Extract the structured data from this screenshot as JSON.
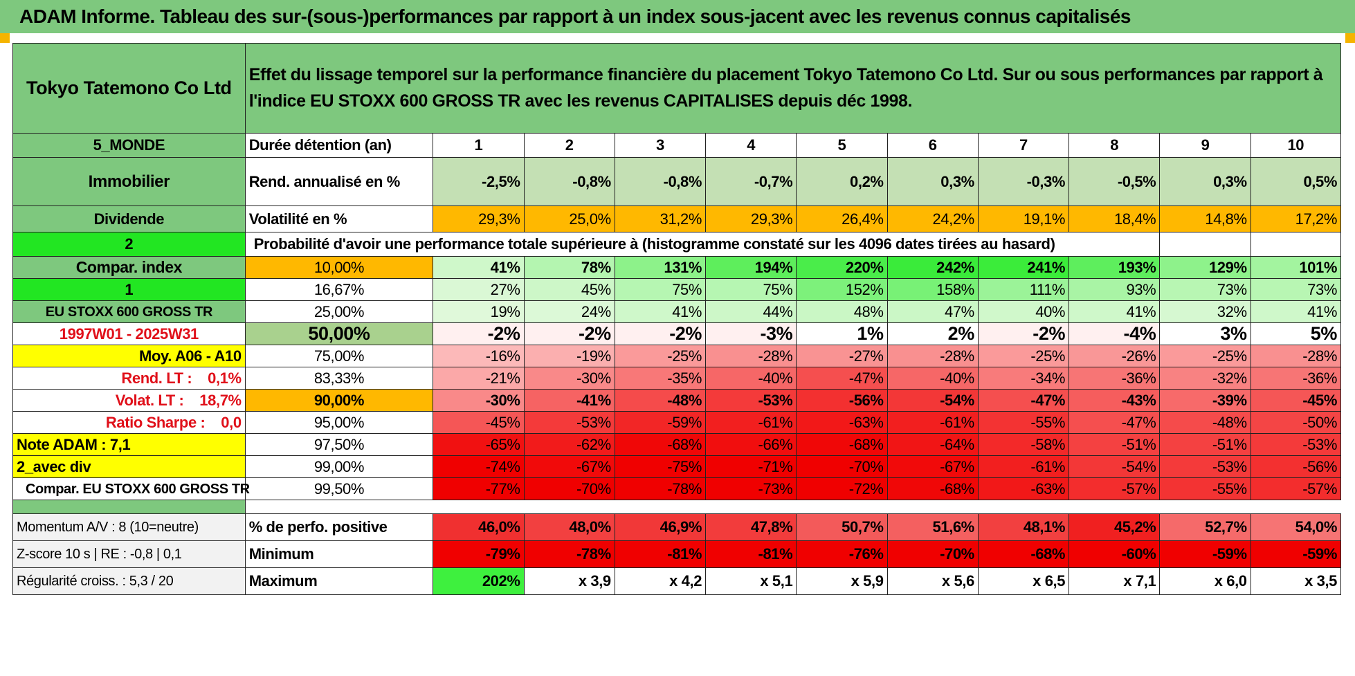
{
  "title": "ADAM Informe. Tableau des sur-(sous-)performances par rapport à un index sous-jacent avec les revenus connus capitalisés",
  "colors": {
    "header_green": "#7ec87e",
    "bright_green": "#22e622",
    "orange": "#ffb800",
    "yellow": "#ffff00",
    "red_text": "#e0101a"
  },
  "left": {
    "name": "Tokyo Tatemono Co Ltd",
    "region": "5_MONDE",
    "sector": "Immobilier",
    "type": "Dividende",
    "n1": "2",
    "compar_label": "Compar. index",
    "n2": "1",
    "index": "EU STOXX 600 GROSS TR",
    "period": "1997W01 - 2025W31",
    "moy": "Moy. A06 - A10",
    "rend_lt": "Rend. LT :    0,1%",
    "volat_lt": "Volat. LT :    18,7%",
    "sharpe": "Ratio Sharpe :    0,0",
    "note": "Note ADAM : 7,1",
    "avec_div": "2_avec div",
    "compar_full": "Compar. EU STOXX 600 GROSS TR",
    "momentum": "Momentum A/V : 8 (10=neutre)",
    "zscore": "Z-score 10 s | RE : -0,8 | 0,1",
    "regularite": "Régularité croiss. : 5,3 / 20"
  },
  "description": "Effet du lissage temporel sur la performance financière du placement Tokyo Tatemono Co Ltd. Sur ou sous performances par rapport à l'indice EU STOXX 600 GROSS TR avec les revenus CAPITALISES depuis déc 1998.",
  "row_labels": {
    "duree": "Durée détention (an)",
    "rend": "Rend. annualisé en %",
    "vol": "Volatilité en %",
    "proba": "Probabilité d'avoir une performance totale supérieure à (histogramme constaté sur les 4096 dates tirées au hasard)",
    "pos": "% de perfo. positive",
    "min": "Minimum",
    "max": "Maximum"
  },
  "years": [
    "1",
    "2",
    "3",
    "4",
    "5",
    "6",
    "7",
    "8",
    "9",
    "10"
  ],
  "rend": [
    "-2,5%",
    "-0,8%",
    "-0,8%",
    "-0,7%",
    "0,2%",
    "0,3%",
    "-0,3%",
    "-0,5%",
    "0,3%",
    "0,5%"
  ],
  "vol": [
    "29,3%",
    "25,0%",
    "31,2%",
    "29,3%",
    "26,4%",
    "24,2%",
    "19,1%",
    "18,4%",
    "14,8%",
    "17,2%"
  ],
  "quantiles": [
    {
      "p": "10,00%",
      "v": [
        "41%",
        "78%",
        "131%",
        "194%",
        "220%",
        "242%",
        "241%",
        "193%",
        "129%",
        "101%"
      ]
    },
    {
      "p": "16,67%",
      "v": [
        "27%",
        "45%",
        "75%",
        "75%",
        "152%",
        "158%",
        "111%",
        "93%",
        "73%",
        "73%"
      ]
    },
    {
      "p": "25,00%",
      "v": [
        "19%",
        "24%",
        "41%",
        "44%",
        "48%",
        "47%",
        "40%",
        "41%",
        "32%",
        "41%"
      ]
    },
    {
      "p": "50,00%",
      "v": [
        "-2%",
        "-2%",
        "-2%",
        "-3%",
        "1%",
        "2%",
        "-2%",
        "-4%",
        "3%",
        "5%"
      ]
    },
    {
      "p": "75,00%",
      "v": [
        "-16%",
        "-19%",
        "-25%",
        "-28%",
        "-27%",
        "-28%",
        "-25%",
        "-26%",
        "-25%",
        "-28%"
      ]
    },
    {
      "p": "83,33%",
      "v": [
        "-21%",
        "-30%",
        "-35%",
        "-40%",
        "-47%",
        "-40%",
        "-34%",
        "-36%",
        "-32%",
        "-36%"
      ]
    },
    {
      "p": "90,00%",
      "v": [
        "-30%",
        "-41%",
        "-48%",
        "-53%",
        "-56%",
        "-54%",
        "-47%",
        "-43%",
        "-39%",
        "-45%"
      ]
    },
    {
      "p": "95,00%",
      "v": [
        "-45%",
        "-53%",
        "-59%",
        "-61%",
        "-63%",
        "-61%",
        "-55%",
        "-47%",
        "-48%",
        "-50%"
      ]
    },
    {
      "p": "97,50%",
      "v": [
        "-65%",
        "-62%",
        "-68%",
        "-66%",
        "-68%",
        "-64%",
        "-58%",
        "-51%",
        "-51%",
        "-53%"
      ]
    },
    {
      "p": "99,00%",
      "v": [
        "-74%",
        "-67%",
        "-75%",
        "-71%",
        "-70%",
        "-67%",
        "-61%",
        "-54%",
        "-53%",
        "-56%"
      ]
    },
    {
      "p": "99,50%",
      "v": [
        "-77%",
        "-70%",
        "-78%",
        "-73%",
        "-72%",
        "-68%",
        "-63%",
        "-57%",
        "-55%",
        "-57%"
      ]
    }
  ],
  "pos": [
    "46,0%",
    "48,0%",
    "46,9%",
    "47,8%",
    "50,7%",
    "51,6%",
    "48,1%",
    "45,2%",
    "52,7%",
    "54,0%"
  ],
  "min": [
    "-79%",
    "-78%",
    "-81%",
    "-81%",
    "-76%",
    "-70%",
    "-68%",
    "-60%",
    "-59%",
    "-59%"
  ],
  "max": [
    "202%",
    "x 3,9",
    "x 4,2",
    "x 5,1",
    "x 5,9",
    "x 5,6",
    "x 6,5",
    "x 7,1",
    "x 6,0",
    "x 3,5"
  ]
}
